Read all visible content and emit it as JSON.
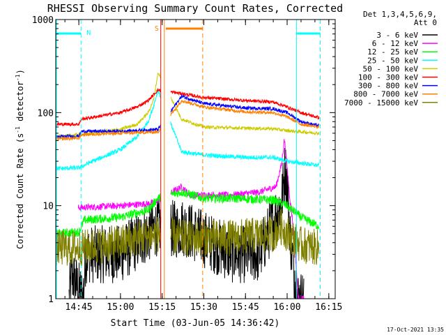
{
  "chart_data": {
    "type": "line",
    "title": "RHESSI Observing Summary Count Rates, Corrected",
    "xlabel": "Start Time (03-Jun-05 14:36:42)",
    "ylabel": "Corrected Count Rate (s⁻¹ detector⁻¹)",
    "ylabel_parts": {
      "a": "Corrected Count Rate (s",
      "exp1": "-1",
      "b": " detector",
      "exp2": "-1",
      "c": ")"
    },
    "yscale": "log",
    "ylim": [
      1,
      1000
    ],
    "xlim_minutes": [
      36.7,
      137.3
    ],
    "x_ticks": [
      {
        "m": 45,
        "label": "14:45"
      },
      {
        "m": 60,
        "label": "15:00"
      },
      {
        "m": 75,
        "label": "15:15"
      },
      {
        "m": 90,
        "label": "15:30"
      },
      {
        "m": 105,
        "label": "15:45"
      },
      {
        "m": 120,
        "label": "16:00"
      },
      {
        "m": 135,
        "label": "16:15"
      }
    ],
    "y_ticks": [
      {
        "v": 1,
        "label": "1"
      },
      {
        "v": 10,
        "label": "10"
      },
      {
        "v": 100,
        "label": "100"
      },
      {
        "v": 1000,
        "label": "1000"
      }
    ],
    "legend": {
      "header": [
        "Det 1,3,4,5,6,9,",
        "Att 0"
      ],
      "entries": [
        {
          "label": "3 - 6 keV",
          "color": "#000000"
        },
        {
          "label": "6 - 12 keV",
          "color": "#ff00ff"
        },
        {
          "label": "12 - 25 keV",
          "color": "#00ff00"
        },
        {
          "label": "25 - 50 keV",
          "color": "#00ffff"
        },
        {
          "label": "50 - 100 keV",
          "color": "#cccc00"
        },
        {
          "label": "100 - 300 keV",
          "color": "#ff0000"
        },
        {
          "label": "300 - 800 keV",
          "color": "#0000ff"
        },
        {
          "label": "800 - 7000 keV",
          "color": "#ff8000"
        },
        {
          "label": "7000 - 15000 keV",
          "color": "#808000"
        }
      ]
    },
    "annotations": {
      "night_label": "N",
      "saa_label": "S",
      "night_color": "#00ffff",
      "saa_color": "#ff8000",
      "night_intervals_minutes": [
        [
          36.7,
          45.8
        ],
        [
          123.4,
          131.9
        ]
      ],
      "saa_interval_minutes": [
        75.8,
        89.6
      ],
      "data_gap_minutes": [
        74.5,
        78.0
      ],
      "timestamp": "17-Oct-2021 13:35"
    },
    "series": [
      {
        "name": "3 - 6 keV",
        "color": "#000000",
        "noise": 0.35,
        "points": [
          [
            41.5,
            1.0
          ],
          [
            42.5,
            1.8
          ],
          [
            46.5,
            1.0
          ],
          [
            47.5,
            3.0
          ],
          [
            60,
            3.0
          ],
          [
            73.5,
            6.0
          ],
          [
            80.5,
            5.5
          ],
          [
            82,
            6.0
          ],
          [
            100,
            3.0
          ],
          [
            110,
            3.0
          ],
          [
            116,
            8.0
          ],
          [
            118,
            11.0
          ],
          [
            119.3,
            26.0
          ],
          [
            120.2,
            15.0
          ],
          [
            121,
            5.0
          ],
          [
            122.5,
            2.0
          ],
          [
            124,
            1.0
          ],
          [
            126,
            1.0
          ]
        ]
      },
      {
        "name": "6 - 12 keV",
        "color": "#ff00ff",
        "noise": 0.06,
        "points": [
          [
            44.8,
            9.5
          ],
          [
            60,
            10.0
          ],
          [
            70,
            10.5
          ],
          [
            73,
            11.0
          ],
          [
            82,
            16.0
          ],
          [
            85,
            13.0
          ],
          [
            100,
            13.0
          ],
          [
            110,
            14.0
          ],
          [
            116,
            16.0
          ],
          [
            118,
            28.0
          ],
          [
            119,
            52.0
          ],
          [
            119.8,
            30.0
          ],
          [
            121,
            12.0
          ],
          [
            122.5,
            5.0
          ],
          [
            124,
            1.0
          ],
          [
            126,
            1.0
          ]
        ]
      },
      {
        "name": "12 - 25 keV",
        "color": "#00ff00",
        "noise": 0.08,
        "points": [
          [
            37,
            5.0
          ],
          [
            45,
            5.2
          ],
          [
            47,
            7.0
          ],
          [
            60,
            7.5
          ],
          [
            70,
            9.0
          ],
          [
            73.5,
            12.0
          ],
          [
            82,
            14.0
          ],
          [
            90,
            12.0
          ],
          [
            100,
            12.0
          ],
          [
            115,
            11.5
          ],
          [
            120,
            10.0
          ],
          [
            125,
            7.5
          ],
          [
            131.5,
            6.0
          ]
        ]
      },
      {
        "name": "25 - 50 keV",
        "color": "#00ffff",
        "noise": 0.04,
        "points": [
          [
            37,
            25.0
          ],
          [
            45,
            25.5
          ],
          [
            50,
            30.0
          ],
          [
            60,
            40.0
          ],
          [
            66,
            55.0
          ],
          [
            70,
            80.0
          ],
          [
            72,
            120.0
          ],
          [
            73.5,
            175.0
          ],
          [
            82,
            38.0
          ],
          [
            90,
            35.0
          ],
          [
            105,
            33.0
          ],
          [
            115,
            33.0
          ],
          [
            120,
            30.0
          ],
          [
            131.5,
            27.0
          ]
        ]
      },
      {
        "name": "50 - 100 keV",
        "color": "#cccc00",
        "noise": 0.03,
        "points": [
          [
            37,
            55.0
          ],
          [
            50,
            60.0
          ],
          [
            60,
            66.0
          ],
          [
            66,
            75.0
          ],
          [
            70,
            100.0
          ],
          [
            72,
            140.0
          ],
          [
            73.5,
            270.0
          ],
          [
            82,
            85.0
          ],
          [
            90,
            70.0
          ],
          [
            105,
            68.0
          ],
          [
            115,
            67.0
          ],
          [
            120,
            64.0
          ],
          [
            131.5,
            60.0
          ]
        ]
      },
      {
        "name": "100 - 300 keV",
        "color": "#ff0000",
        "noise": 0.03,
        "points": [
          [
            37,
            75.0
          ],
          [
            45,
            75.0
          ],
          [
            46,
            85.0
          ],
          [
            60,
            100.0
          ],
          [
            66,
            115.0
          ],
          [
            70,
            135.0
          ],
          [
            73.5,
            175.0
          ],
          [
            82,
            160.0
          ],
          [
            90,
            145.0
          ],
          [
            105,
            135.0
          ],
          [
            115,
            130.0
          ],
          [
            120,
            115.0
          ],
          [
            125,
            100.0
          ],
          [
            131.5,
            88.0
          ]
        ]
      },
      {
        "name": "300 - 800 keV",
        "color": "#0000ff",
        "noise": 0.03,
        "points": [
          [
            37,
            55.0
          ],
          [
            45,
            56.0
          ],
          [
            46,
            63.0
          ],
          [
            60,
            63.0
          ],
          [
            73.5,
            66.0
          ],
          [
            82,
            150.0
          ],
          [
            90,
            125.0
          ],
          [
            105,
            112.0
          ],
          [
            115,
            110.0
          ],
          [
            120,
            100.0
          ],
          [
            125,
            80.0
          ],
          [
            131.5,
            72.0
          ]
        ]
      },
      {
        "name": "800 - 7000 keV",
        "color": "#ff8000",
        "noise": 0.03,
        "points": [
          [
            37,
            52.0
          ],
          [
            45,
            53.0
          ],
          [
            46,
            58.0
          ],
          [
            60,
            60.0
          ],
          [
            73.5,
            62.0
          ],
          [
            82,
            135.0
          ],
          [
            90,
            115.0
          ],
          [
            105,
            102.0
          ],
          [
            115,
            100.0
          ],
          [
            120,
            90.0
          ],
          [
            125,
            75.0
          ],
          [
            131.5,
            70.0
          ]
        ]
      },
      {
        "name": "7000 - 15000 keV",
        "color": "#808000",
        "noise": 0.22,
        "points": [
          [
            37,
            3.5
          ],
          [
            45,
            3.5
          ],
          [
            60,
            4.0
          ],
          [
            73.5,
            5.0
          ],
          [
            82,
            4.5
          ],
          [
            100,
            4.5
          ],
          [
            115,
            5.0
          ],
          [
            118,
            6.0
          ],
          [
            120,
            5.0
          ],
          [
            125,
            3.8
          ],
          [
            131.5,
            3.5
          ]
        ]
      }
    ]
  }
}
